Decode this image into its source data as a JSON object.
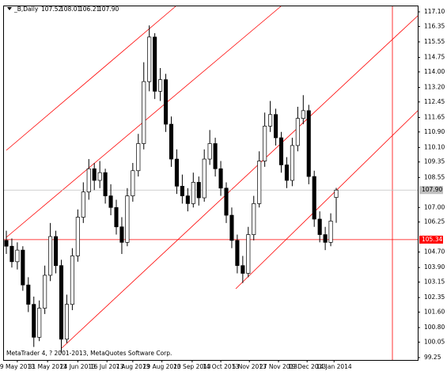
{
  "chart_data": {
    "type": "candlestick",
    "title": "_B,Daily",
    "header_values": [
      {
        "value": 107.52,
        "label": "107.52"
      },
      {
        "value": 108.01,
        "label": "108.01"
      },
      {
        "value": 106.21,
        "label": "106.21"
      },
      {
        "value": 107.9,
        "label": "107.90"
      }
    ],
    "footer": "MetaTrader 4, ? 2001-2013, MetaQuotes Software Corp.",
    "ohlc": [
      [
        105.3,
        105.8,
        104.6,
        105.0
      ],
      [
        105.0,
        105.4,
        103.9,
        104.2
      ],
      [
        104.2,
        105.2,
        103.8,
        104.8
      ],
      [
        104.8,
        105.0,
        102.7,
        103.0
      ],
      [
        103.0,
        103.4,
        101.6,
        102.0
      ],
      [
        102.0,
        102.4,
        99.8,
        100.3
      ],
      [
        100.3,
        102.2,
        100.1,
        101.8
      ],
      [
        101.8,
        104.0,
        101.5,
        103.5
      ],
      [
        103.5,
        106.2,
        103.2,
        105.5
      ],
      [
        105.5,
        105.8,
        103.6,
        104.0
      ],
      [
        104.0,
        104.3,
        99.5,
        100.2
      ],
      [
        100.2,
        102.5,
        100.0,
        102.0
      ],
      [
        102.0,
        104.9,
        101.7,
        104.5
      ],
      [
        104.5,
        106.9,
        104.2,
        106.5
      ],
      [
        106.5,
        108.3,
        106.2,
        107.8
      ],
      [
        107.8,
        109.5,
        107.4,
        109.0
      ],
      [
        109.0,
        109.3,
        107.9,
        108.4
      ],
      [
        108.4,
        109.4,
        108.0,
        108.8
      ],
      [
        108.8,
        109.0,
        107.2,
        107.6
      ],
      [
        107.6,
        108.2,
        106.6,
        107.0
      ],
      [
        107.0,
        107.4,
        105.6,
        106.0
      ],
      [
        106.0,
        106.5,
        104.6,
        105.2
      ],
      [
        105.2,
        108.0,
        105.0,
        107.6
      ],
      [
        107.6,
        109.3,
        107.3,
        108.9
      ],
      [
        108.9,
        110.8,
        108.6,
        110.3
      ],
      [
        110.3,
        114.5,
        110.0,
        113.5
      ],
      [
        113.5,
        116.4,
        113.0,
        115.8
      ],
      [
        115.8,
        116.0,
        112.6,
        113.0
      ],
      [
        113.0,
        114.2,
        112.5,
        113.6
      ],
      [
        113.6,
        113.9,
        110.9,
        111.3
      ],
      [
        111.3,
        111.7,
        109.1,
        109.5
      ],
      [
        109.5,
        110.0,
        107.7,
        108.1
      ],
      [
        108.1,
        108.7,
        107.2,
        107.6
      ],
      [
        107.6,
        108.0,
        106.8,
        107.2
      ],
      [
        107.2,
        108.8,
        107.0,
        108.3
      ],
      [
        108.3,
        108.6,
        107.1,
        107.5
      ],
      [
        107.5,
        110.0,
        107.3,
        109.5
      ],
      [
        109.5,
        111.0,
        109.2,
        110.3
      ],
      [
        110.3,
        110.6,
        108.6,
        109.0
      ],
      [
        109.0,
        109.4,
        107.6,
        108.0
      ],
      [
        108.0,
        108.3,
        106.2,
        106.6
      ],
      [
        106.6,
        107.0,
        104.9,
        105.3
      ],
      [
        105.3,
        105.6,
        103.6,
        104.0
      ],
      [
        104.0,
        104.5,
        103.1,
        103.6
      ],
      [
        103.6,
        106.0,
        103.4,
        105.6
      ],
      [
        105.6,
        107.6,
        105.3,
        107.2
      ],
      [
        107.2,
        109.9,
        107.0,
        109.4
      ],
      [
        109.4,
        111.9,
        109.1,
        111.2
      ],
      [
        111.2,
        112.5,
        110.9,
        111.8
      ],
      [
        111.8,
        112.1,
        110.2,
        110.6
      ],
      [
        110.6,
        110.9,
        108.8,
        109.2
      ],
      [
        109.2,
        109.6,
        108.0,
        108.4
      ],
      [
        108.4,
        110.6,
        108.1,
        110.2
      ],
      [
        110.2,
        112.2,
        109.9,
        111.6
      ],
      [
        111.6,
        112.8,
        111.3,
        112.0
      ],
      [
        112.0,
        112.3,
        108.2,
        108.6
      ],
      [
        108.6,
        108.9,
        106.0,
        106.4
      ],
      [
        106.4,
        106.8,
        105.2,
        105.6
      ],
      [
        105.6,
        106.0,
        104.8,
        105.2
      ],
      [
        105.2,
        106.7,
        105.0,
        106.3
      ],
      [
        107.52,
        108.01,
        106.21,
        107.9
      ]
    ],
    "xticks": [
      {
        "value": 2,
        "label": "9 May 2013"
      },
      {
        "value": 7.5,
        "label": "31 May 2013"
      },
      {
        "value": 13,
        "label": "24 Jun 2013"
      },
      {
        "value": 18.3,
        "label": "16 Jul 2013"
      },
      {
        "value": 23,
        "label": "7 Aug 2013"
      },
      {
        "value": 28.3,
        "label": "29 Aug 2013"
      },
      {
        "value": 33.8,
        "label": "20 Sep 2013"
      },
      {
        "value": 39,
        "label": "14 Oct 2013"
      },
      {
        "value": 44.2,
        "label": "5 Nov 2013"
      },
      {
        "value": 49.5,
        "label": "27 Nov 2013"
      },
      {
        "value": 54.7,
        "label": "19 Dec 2013"
      },
      {
        "value": 59.6,
        "label": "14 Jan 2014"
      }
    ],
    "ylim": [
      99.25,
      117.1
    ],
    "yticks": [
      {
        "value": 117.1,
        "label": "117.10"
      },
      {
        "value": 116.35,
        "label": "116.35"
      },
      {
        "value": 115.55,
        "label": "115.55"
      },
      {
        "value": 114.75,
        "label": "114.75"
      },
      {
        "value": 114.0,
        "label": "114.00"
      },
      {
        "value": 113.2,
        "label": "113.20"
      },
      {
        "value": 112.45,
        "label": "112.45"
      },
      {
        "value": 111.65,
        "label": "111.65"
      },
      {
        "value": 110.9,
        "label": "110.90"
      },
      {
        "value": 110.1,
        "label": "110.10"
      },
      {
        "value": 109.35,
        "label": "109.35"
      },
      {
        "value": 108.55,
        "label": "108.55"
      },
      {
        "value": 107.0,
        "label": "107.00"
      },
      {
        "value": 106.25,
        "label": "106.25"
      },
      {
        "value": 104.7,
        "label": "104.70"
      },
      {
        "value": 103.9,
        "label": "103.90"
      },
      {
        "value": 103.15,
        "label": "103.15"
      },
      {
        "value": 102.35,
        "label": "102.35"
      },
      {
        "value": 101.6,
        "label": "101.60"
      },
      {
        "value": 100.8,
        "label": "100.80"
      },
      {
        "value": 100.05,
        "label": "100.05"
      },
      {
        "value": 99.25,
        "label": "99.25"
      }
    ],
    "price_lines": [
      {
        "value": 107.9,
        "label": "107.90",
        "color": "#c0c0c0"
      },
      {
        "value": 105.34,
        "label": "105.34",
        "color": "#ff0000"
      }
    ],
    "up_color": "#ffffff",
    "down_color": "#000000"
  }
}
